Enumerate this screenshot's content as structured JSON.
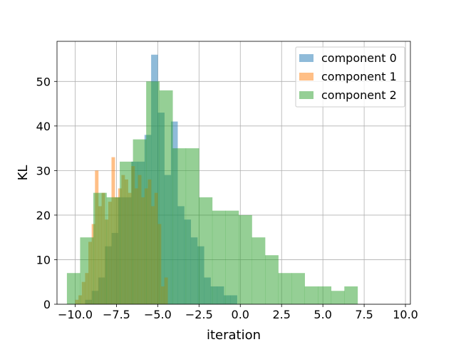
{
  "chart_data": {
    "type": "histogram",
    "xlabel": "iteration",
    "ylabel": "KL",
    "xlim": [
      -11.1,
      10.3
    ],
    "ylim": [
      0,
      59
    ],
    "xticks": [
      -10.0,
      -7.5,
      -5.0,
      -2.5,
      0.0,
      2.5,
      5.0,
      7.5,
      10.0
    ],
    "xtick_labels": [
      "−10.0",
      "−7.5",
      "−5.0",
      "−2.5",
      "0.0",
      "2.5",
      "5.0",
      "7.5",
      "10.0"
    ],
    "yticks": [
      0,
      10,
      20,
      30,
      40,
      50
    ],
    "ytick_labels": [
      "0",
      "10",
      "20",
      "30",
      "40",
      "50"
    ],
    "grid": true,
    "legend_position": "top-right",
    "alpha": 0.5,
    "series": [
      {
        "name": "component 0",
        "color": "#1f77b4",
        "bin_start": -9.8,
        "bin_width": 0.4,
        "counts": [
          0,
          1,
          3,
          6,
          13,
          16,
          24,
          24,
          32,
          32,
          38,
          56,
          43,
          29,
          41,
          22,
          19,
          15,
          13,
          6,
          4,
          4,
          2,
          2
        ]
      },
      {
        "name": "component 1",
        "color": "#ff7f0e",
        "bin_start": -10.0,
        "bin_width": 0.2,
        "counts": [
          1,
          2,
          5,
          7,
          14,
          18,
          30,
          22,
          25,
          19,
          23,
          33,
          24,
          26,
          29,
          28,
          25,
          31,
          26,
          29,
          24,
          26,
          28,
          22,
          25,
          18,
          4,
          6
        ]
      },
      {
        "name": "component 2",
        "color": "#2ca02c",
        "bin_start": -10.5,
        "bin_width": 0.8,
        "counts": [
          7,
          15,
          25,
          24,
          32,
          37,
          50,
          48,
          35,
          35,
          24,
          21,
          21,
          20,
          15,
          11,
          7,
          7,
          4,
          4,
          3,
          4
        ]
      }
    ]
  }
}
